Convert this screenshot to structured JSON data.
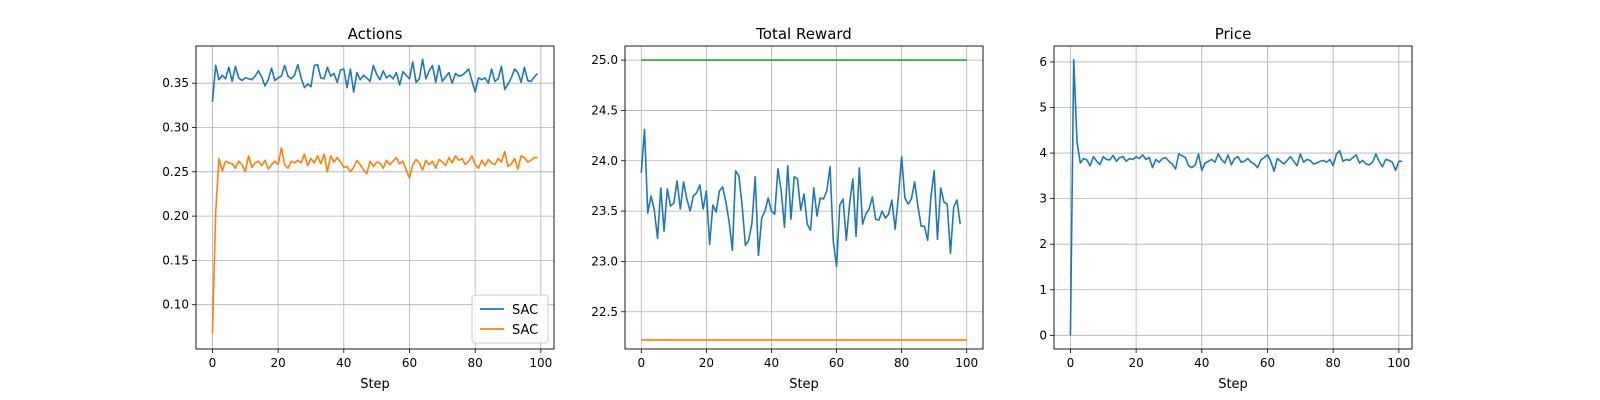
{
  "figure": {
    "background": "#ffffff"
  },
  "chart_data": [
    {
      "type": "line",
      "title": "Actions",
      "xlabel": "Step",
      "ylabel": "",
      "xlim": [
        -5,
        104
      ],
      "ylim": [
        0.05,
        0.392
      ],
      "xticks": [
        0,
        20,
        40,
        60,
        80,
        100
      ],
      "yticks": [
        0.1,
        0.15,
        0.2,
        0.25,
        0.3,
        0.35
      ],
      "ytick_decimals": 2,
      "grid": true,
      "legend": "lower-right",
      "series": [
        {
          "name": "SAC",
          "color": "#1f77b4",
          "x_start": 0,
          "values": [
            0.329,
            0.37,
            0.354,
            0.359,
            0.355,
            0.368,
            0.352,
            0.369,
            0.356,
            0.353,
            0.356,
            0.355,
            0.354,
            0.358,
            0.364,
            0.357,
            0.347,
            0.354,
            0.367,
            0.353,
            0.356,
            0.358,
            0.37,
            0.358,
            0.355,
            0.359,
            0.371,
            0.356,
            0.345,
            0.349,
            0.346,
            0.37,
            0.371,
            0.356,
            0.355,
            0.368,
            0.358,
            0.361,
            0.351,
            0.365,
            0.366,
            0.345,
            0.366,
            0.34,
            0.362,
            0.354,
            0.359,
            0.356,
            0.352,
            0.37,
            0.36,
            0.354,
            0.364,
            0.356,
            0.359,
            0.355,
            0.362,
            0.348,
            0.363,
            0.359,
            0.355,
            0.374,
            0.351,
            0.355,
            0.377,
            0.355,
            0.364,
            0.37,
            0.351,
            0.37,
            0.352,
            0.357,
            0.362,
            0.35,
            0.361,
            0.358,
            0.359,
            0.362,
            0.366,
            0.353,
            0.34,
            0.356,
            0.354,
            0.356,
            0.35,
            0.366,
            0.352,
            0.355,
            0.369,
            0.343,
            0.349,
            0.356,
            0.366,
            0.362,
            0.351,
            0.368,
            0.353,
            0.352,
            0.357,
            0.361
          ]
        },
        {
          "name": "SAC",
          "color": "#ff7f0e",
          "x_start": 0,
          "values": [
            0.067,
            0.205,
            0.265,
            0.251,
            0.262,
            0.26,
            0.259,
            0.254,
            0.262,
            0.258,
            0.25,
            0.268,
            0.255,
            0.26,
            0.262,
            0.257,
            0.263,
            0.253,
            0.258,
            0.262,
            0.258,
            0.277,
            0.258,
            0.254,
            0.262,
            0.26,
            0.263,
            0.26,
            0.27,
            0.257,
            0.265,
            0.26,
            0.268,
            0.259,
            0.27,
            0.25,
            0.268,
            0.261,
            0.266,
            0.261,
            0.255,
            0.256,
            0.25,
            0.255,
            0.263,
            0.258,
            0.252,
            0.248,
            0.262,
            0.256,
            0.261,
            0.26,
            0.254,
            0.263,
            0.258,
            0.262,
            0.266,
            0.259,
            0.262,
            0.252,
            0.243,
            0.258,
            0.264,
            0.26,
            0.252,
            0.263,
            0.258,
            0.262,
            0.254,
            0.264,
            0.261,
            0.257,
            0.266,
            0.26,
            0.268,
            0.263,
            0.265,
            0.258,
            0.262,
            0.268,
            0.258,
            0.254,
            0.263,
            0.257,
            0.264,
            0.26,
            0.258,
            0.265,
            0.261,
            0.273,
            0.256,
            0.259,
            0.265,
            0.253,
            0.268,
            0.266,
            0.261,
            0.263,
            0.266,
            0.266
          ]
        }
      ]
    },
    {
      "type": "line",
      "title": "Total Reward",
      "xlabel": "Step",
      "ylabel": "",
      "xlim": [
        -5,
        105
      ],
      "ylim": [
        22.13,
        25.14
      ],
      "xticks": [
        0,
        20,
        40,
        60,
        80,
        100
      ],
      "yticks": [
        22.5,
        23.0,
        23.5,
        24.0,
        24.5,
        25.0
      ],
      "ytick_decimals": 1,
      "grid": true,
      "legend": "none",
      "series": [
        {
          "color": "#1f77b4",
          "x_start": 0,
          "values": [
            23.88,
            24.31,
            23.48,
            23.65,
            23.51,
            23.23,
            23.73,
            23.3,
            23.72,
            23.55,
            23.58,
            23.8,
            23.52,
            23.79,
            23.62,
            23.5,
            23.65,
            23.68,
            23.76,
            23.52,
            23.7,
            23.17,
            23.56,
            23.49,
            23.7,
            23.74,
            23.59,
            23.39,
            23.11,
            23.9,
            23.85,
            23.55,
            23.16,
            23.21,
            23.38,
            23.84,
            23.06,
            23.43,
            23.5,
            23.63,
            23.5,
            23.47,
            23.92,
            23.7,
            23.34,
            23.95,
            23.42,
            23.84,
            23.82,
            23.51,
            23.67,
            23.37,
            23.31,
            23.73,
            23.45,
            23.63,
            23.62,
            23.7,
            23.94,
            23.2,
            22.95,
            23.56,
            23.62,
            23.21,
            23.57,
            23.82,
            23.25,
            23.93,
            23.37,
            23.47,
            23.52,
            23.64,
            23.42,
            23.41,
            23.5,
            23.43,
            23.47,
            23.61,
            23.32,
            23.64,
            24.04,
            23.63,
            23.57,
            23.62,
            23.79,
            23.55,
            23.35,
            23.35,
            23.21,
            23.64,
            23.9,
            23.22,
            23.73,
            23.59,
            23.57,
            23.08,
            23.54,
            23.61,
            23.37
          ]
        },
        {
          "color": "#2ca02c",
          "x": [
            0,
            100
          ],
          "values": [
            25.0,
            25.0
          ]
        },
        {
          "color": "#ff7f0e",
          "x": [
            0,
            100
          ],
          "values": [
            22.22,
            22.22
          ]
        }
      ]
    },
    {
      "type": "line",
      "title": "Price",
      "xlabel": "Step",
      "ylabel": "",
      "xlim": [
        -5,
        104
      ],
      "ylim": [
        -0.3,
        6.35
      ],
      "xticks": [
        0,
        20,
        40,
        60,
        80,
        100
      ],
      "yticks": [
        0,
        1,
        2,
        3,
        4,
        5,
        6
      ],
      "ytick_decimals": 0,
      "grid": true,
      "legend": "none",
      "series": [
        {
          "color": "#1f77b4",
          "x_start": 0,
          "values": [
            0.0,
            6.05,
            4.25,
            3.78,
            3.88,
            3.85,
            3.72,
            3.92,
            3.82,
            3.75,
            3.92,
            3.86,
            3.85,
            3.95,
            3.82,
            3.9,
            3.92,
            3.82,
            3.88,
            3.86,
            3.92,
            3.88,
            3.96,
            3.86,
            3.9,
            3.68,
            3.86,
            3.8,
            3.88,
            3.9,
            3.82,
            3.76,
            3.65,
            3.98,
            3.94,
            3.9,
            3.72,
            3.68,
            3.74,
            3.98,
            3.62,
            3.78,
            3.82,
            3.86,
            3.8,
            3.98,
            3.86,
            3.78,
            3.96,
            3.74,
            3.88,
            3.92,
            3.8,
            3.82,
            3.88,
            3.8,
            3.76,
            3.68,
            3.85,
            3.9,
            3.96,
            3.82,
            3.6,
            3.88,
            3.82,
            3.76,
            3.84,
            3.92,
            3.82,
            3.72,
            3.98,
            3.8,
            3.86,
            3.84,
            3.76,
            3.78,
            3.82,
            3.84,
            3.8,
            3.86,
            3.72,
            3.98,
            4.05,
            3.82,
            3.86,
            3.84,
            3.9,
            3.96,
            3.78,
            3.84,
            3.76,
            3.74,
            3.8,
            3.98,
            3.82,
            3.7,
            3.86,
            3.84,
            3.8,
            3.62,
            3.82,
            3.82
          ]
        }
      ]
    }
  ]
}
